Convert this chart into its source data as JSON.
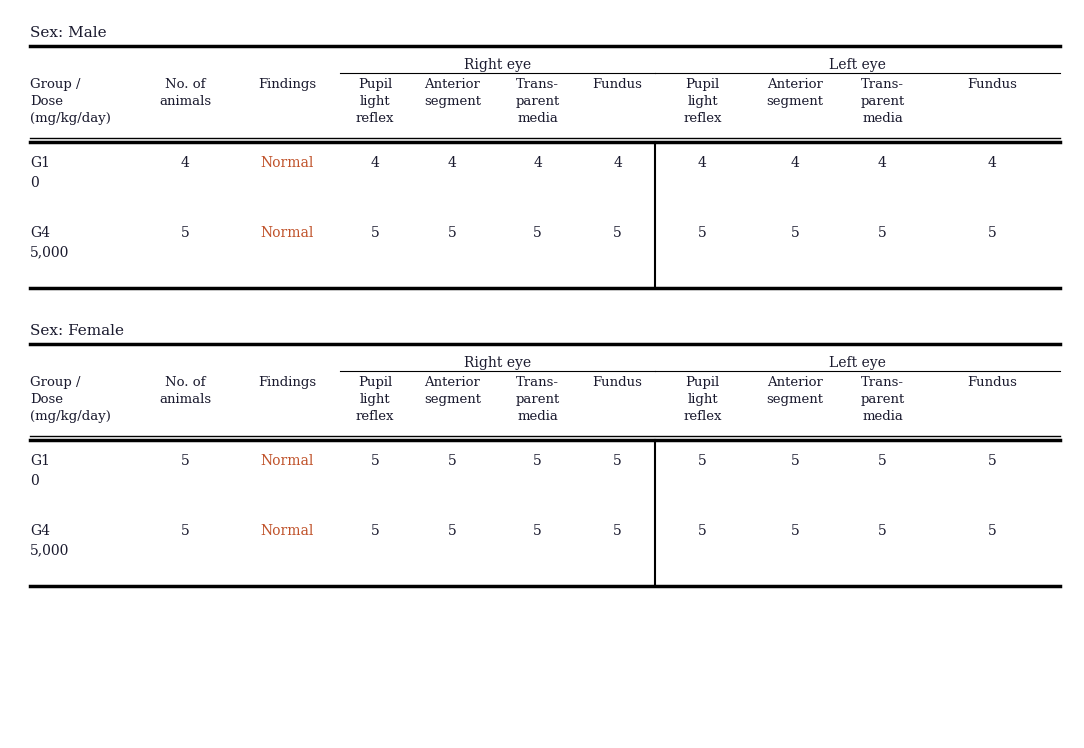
{
  "background_color": "#ffffff",
  "sections": [
    {
      "sex_label": "Sex: Male",
      "rows": [
        {
          "group": "G1\n0",
          "no_animals": "4",
          "findings": "Normal",
          "right_pupil": "4",
          "right_anterior": "4",
          "right_transparent": "4",
          "right_fundus": "4",
          "left_pupil": "4",
          "left_anterior": "4",
          "left_transparent": "4",
          "left_fundus": "4"
        },
        {
          "group": "G4\n5,000",
          "no_animals": "5",
          "findings": "Normal",
          "right_pupil": "5",
          "right_anterior": "5",
          "right_transparent": "5",
          "right_fundus": "5",
          "left_pupil": "5",
          "left_anterior": "5",
          "left_transparent": "5",
          "left_fundus": "5"
        }
      ]
    },
    {
      "sex_label": "Sex: Female",
      "rows": [
        {
          "group": "G1\n0",
          "no_animals": "5",
          "findings": "Normal",
          "right_pupil": "5",
          "right_anterior": "5",
          "right_transparent": "5",
          "right_fundus": "5",
          "left_pupil": "5",
          "left_anterior": "5",
          "left_transparent": "5",
          "left_fundus": "5"
        },
        {
          "group": "G4\n5,000",
          "no_animals": "5",
          "findings": "Normal",
          "right_pupil": "5",
          "right_anterior": "5",
          "right_transparent": "5",
          "right_fundus": "5",
          "left_pupil": "5",
          "left_anterior": "5",
          "left_transparent": "5",
          "left_fundus": "5"
        }
      ]
    }
  ],
  "right_eye_label": "Right eye",
  "left_eye_label": "Left eye",
  "col_headers": [
    "Group /\nDose\n(mg/kg/day)",
    "No. of\nanimals",
    "Findings",
    "Pupil\nlight\nreflex",
    "Anterior\nsegment",
    "Trans-\nparent\nmedia",
    "Fundus",
    "Pupil\nlight\nreflex",
    "Anterior\nsegment",
    "Trans-\nparent\nmedia",
    "Fundus"
  ],
  "findings_color": "#c0522a",
  "text_color": "#1a1a2e",
  "font_size": 10,
  "sex_label_color": "#1a1a2e"
}
